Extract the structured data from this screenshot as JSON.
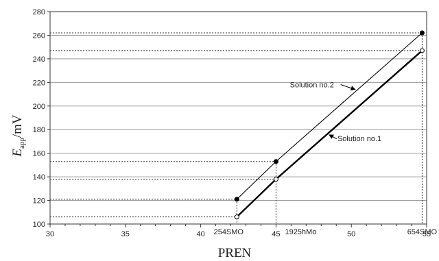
{
  "chart_data": {
    "type": "line",
    "xlabel": "PREN",
    "ylabel_main": "E",
    "ylabel_sub": "app",
    "ylabel_unit": "/mV",
    "xlim": [
      30,
      55
    ],
    "ylim": [
      100,
      280
    ],
    "x_ticks": [
      30,
      35,
      40,
      45,
      50,
      55
    ],
    "y_ticks": [
      100,
      120,
      140,
      160,
      180,
      200,
      220,
      240,
      260,
      280
    ],
    "grid": "horizontal",
    "categories": [
      {
        "label": "254SMO",
        "x": 42.4
      },
      {
        "label": "1925hMo",
        "x": 45.0
      },
      {
        "label": "654SMO",
        "x": 54.7
      }
    ],
    "series": [
      {
        "name": "Solution no.1",
        "marker": "open-circle",
        "stroke": "#000000",
        "stroke_width": 2.4,
        "x": [
          42.4,
          45.0,
          54.7
        ],
        "y": [
          106,
          138,
          247
        ]
      },
      {
        "name": "Solution no.2",
        "marker": "filled-circle",
        "stroke": "#000000",
        "stroke_width": 1.1,
        "x": [
          42.4,
          45.0,
          54.7
        ],
        "y": [
          121,
          153,
          262
        ]
      }
    ],
    "annotations": [
      {
        "text": "Solution no.2",
        "series": 1,
        "position": "upper-left"
      },
      {
        "text": "Solution no.1",
        "series": 0,
        "position": "lower-right"
      }
    ]
  }
}
